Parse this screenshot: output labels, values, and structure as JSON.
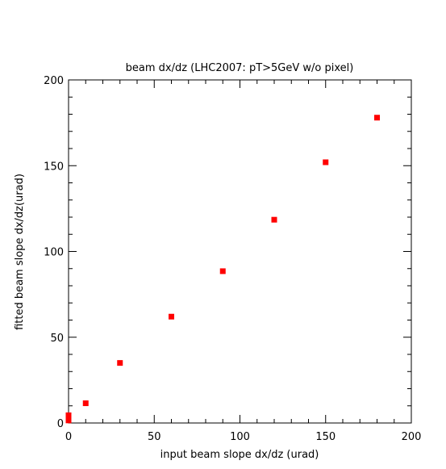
{
  "chart_data": {
    "type": "scatter",
    "title": "beam dx/dz (LHC2007: pT>5GeV w/o pixel)",
    "xlabel": "input beam slope dx/dz (urad)",
    "ylabel": "fitted  beam slope dx/dz(urad)",
    "xlim": [
      0,
      200
    ],
    "ylim": [
      0,
      200
    ],
    "xticks": [
      0,
      50,
      100,
      150,
      200
    ],
    "yticks": [
      0,
      50,
      100,
      150,
      200
    ],
    "xtick_labels": [
      "0",
      "50",
      "100",
      "150",
      "200"
    ],
    "ytick_labels": [
      "0",
      "50",
      "100",
      "150",
      "200"
    ],
    "grid": false,
    "marker_color": "#ff0000",
    "points": [
      {
        "x": 0,
        "y": 4.5,
        "yerr": 1.5
      },
      {
        "x": 0,
        "y": 1.5,
        "yerr": 1.5
      },
      {
        "x": 10,
        "y": 11.5,
        "yerr": 1.5
      },
      {
        "x": 30,
        "y": 35,
        "yerr": 1.5
      },
      {
        "x": 60,
        "y": 62,
        "yerr": 1.5
      },
      {
        "x": 90,
        "y": 88.5,
        "yerr": 1.5
      },
      {
        "x": 120,
        "y": 118.5,
        "yerr": 1.5
      },
      {
        "x": 150,
        "y": 152,
        "yerr": 1.5
      },
      {
        "x": 180,
        "y": 178,
        "yerr": 1.5
      }
    ]
  }
}
